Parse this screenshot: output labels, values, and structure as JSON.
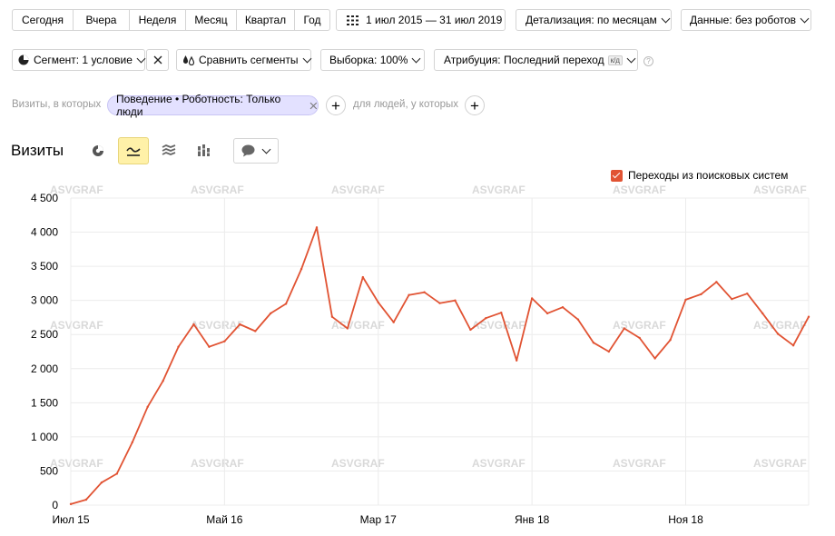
{
  "toolbar": {
    "periods": [
      "Сегодня",
      "Вчера",
      "Неделя",
      "Месяц",
      "Квартал",
      "Год"
    ],
    "date_range": "1 июл 2015 — 31 июл 2019",
    "detail": "Детализация: по месяцам",
    "data_filter": "Данные: без роботов"
  },
  "toolbar2": {
    "segment": "Сегмент: 1 условие",
    "compare": "Сравнить сегменты",
    "sample": "Выборка: 100%",
    "attribution": "Атрибуция: Последний переход",
    "attribution_badge": "к/д",
    "help": "?"
  },
  "filters": {
    "prefix": "Визиты, в которых",
    "condition": "Поведение • Роботность: Только люди",
    "suffix": "для людей, у которых",
    "plus": "+"
  },
  "report": {
    "title": "Визиты"
  },
  "watermark": "ASVGRAF",
  "colors": {
    "series": "#e15333",
    "active_view": "#fff1a8",
    "filter_pill": "#e3e1ff"
  },
  "chart_data": {
    "type": "line",
    "legend": {
      "label": "Переходы из поисковых систем",
      "placement": "top-right",
      "checked": true
    },
    "ylim": [
      0,
      4500
    ],
    "yticks": [
      "0",
      "500",
      "1 000",
      "1 500",
      "2 000",
      "2 500",
      "3 000",
      "3 500",
      "4 000",
      "4 500"
    ],
    "yvalues": [
      0,
      500,
      1000,
      1500,
      2000,
      2500,
      3000,
      3500,
      4000,
      4500
    ],
    "xticks": [
      {
        "label": "Июл 15",
        "index": 0
      },
      {
        "label": "Май 16",
        "index": 10
      },
      {
        "label": "Мар 17",
        "index": 20
      },
      {
        "label": "Янв 18",
        "index": 30
      },
      {
        "label": "Ноя 18",
        "index": 40
      }
    ],
    "grid": true,
    "series": [
      {
        "values": [
          15,
          80,
          330,
          460,
          920,
          1440,
          1820,
          2320,
          2650,
          2320,
          2400,
          2650,
          2550,
          2810,
          2950,
          3460,
          4070,
          2760,
          2590,
          3340,
          2970,
          2680,
          3080,
          3120,
          2960,
          3000,
          2570,
          2740,
          2820,
          2120,
          3030,
          2810,
          2900,
          2720,
          2380,
          2250,
          2590,
          2450,
          2150,
          2420,
          3010,
          3090,
          3270,
          3020,
          3100,
          2810,
          2510,
          2340,
          2760
        ]
      }
    ]
  }
}
